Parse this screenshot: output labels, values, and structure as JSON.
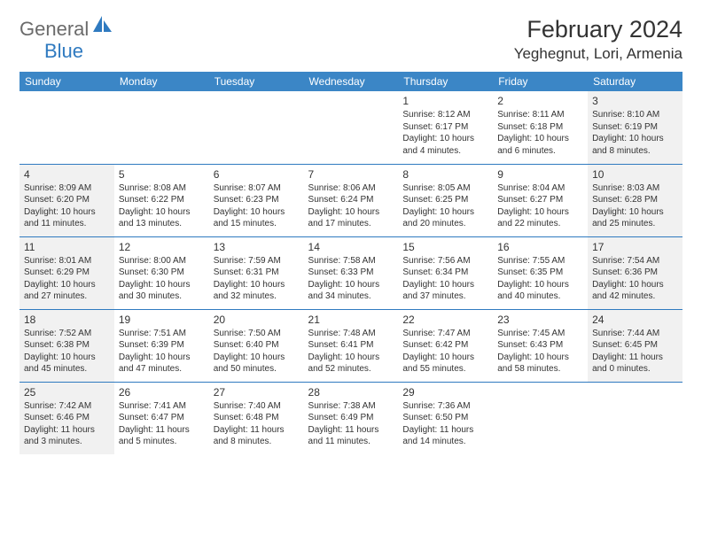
{
  "logo": {
    "text_general": "General",
    "text_blue": "Blue"
  },
  "title": "February 2024",
  "location": "Yeghegnut, Lori, Armenia",
  "colors": {
    "header_bg": "#3b86c6",
    "border": "#2f7ac0",
    "shaded": "#f1f1f1",
    "text": "#333333",
    "logo_gray": "#6b6b6b"
  },
  "weekdays": [
    "Sunday",
    "Monday",
    "Tuesday",
    "Wednesday",
    "Thursday",
    "Friday",
    "Saturday"
  ],
  "weeks": [
    [
      {
        "empty": true
      },
      {
        "empty": true
      },
      {
        "empty": true
      },
      {
        "empty": true
      },
      {
        "day": "1",
        "sunrise": "Sunrise: 8:12 AM",
        "sunset": "Sunset: 6:17 PM",
        "daylight": "Daylight: 10 hours and 4 minutes."
      },
      {
        "day": "2",
        "sunrise": "Sunrise: 8:11 AM",
        "sunset": "Sunset: 6:18 PM",
        "daylight": "Daylight: 10 hours and 6 minutes."
      },
      {
        "day": "3",
        "shaded": true,
        "sunrise": "Sunrise: 8:10 AM",
        "sunset": "Sunset: 6:19 PM",
        "daylight": "Daylight: 10 hours and 8 minutes."
      }
    ],
    [
      {
        "day": "4",
        "shaded": true,
        "sunrise": "Sunrise: 8:09 AM",
        "sunset": "Sunset: 6:20 PM",
        "daylight": "Daylight: 10 hours and 11 minutes."
      },
      {
        "day": "5",
        "sunrise": "Sunrise: 8:08 AM",
        "sunset": "Sunset: 6:22 PM",
        "daylight": "Daylight: 10 hours and 13 minutes."
      },
      {
        "day": "6",
        "sunrise": "Sunrise: 8:07 AM",
        "sunset": "Sunset: 6:23 PM",
        "daylight": "Daylight: 10 hours and 15 minutes."
      },
      {
        "day": "7",
        "sunrise": "Sunrise: 8:06 AM",
        "sunset": "Sunset: 6:24 PM",
        "daylight": "Daylight: 10 hours and 17 minutes."
      },
      {
        "day": "8",
        "sunrise": "Sunrise: 8:05 AM",
        "sunset": "Sunset: 6:25 PM",
        "daylight": "Daylight: 10 hours and 20 minutes."
      },
      {
        "day": "9",
        "sunrise": "Sunrise: 8:04 AM",
        "sunset": "Sunset: 6:27 PM",
        "daylight": "Daylight: 10 hours and 22 minutes."
      },
      {
        "day": "10",
        "shaded": true,
        "sunrise": "Sunrise: 8:03 AM",
        "sunset": "Sunset: 6:28 PM",
        "daylight": "Daylight: 10 hours and 25 minutes."
      }
    ],
    [
      {
        "day": "11",
        "shaded": true,
        "sunrise": "Sunrise: 8:01 AM",
        "sunset": "Sunset: 6:29 PM",
        "daylight": "Daylight: 10 hours and 27 minutes."
      },
      {
        "day": "12",
        "sunrise": "Sunrise: 8:00 AM",
        "sunset": "Sunset: 6:30 PM",
        "daylight": "Daylight: 10 hours and 30 minutes."
      },
      {
        "day": "13",
        "sunrise": "Sunrise: 7:59 AM",
        "sunset": "Sunset: 6:31 PM",
        "daylight": "Daylight: 10 hours and 32 minutes."
      },
      {
        "day": "14",
        "sunrise": "Sunrise: 7:58 AM",
        "sunset": "Sunset: 6:33 PM",
        "daylight": "Daylight: 10 hours and 34 minutes."
      },
      {
        "day": "15",
        "sunrise": "Sunrise: 7:56 AM",
        "sunset": "Sunset: 6:34 PM",
        "daylight": "Daylight: 10 hours and 37 minutes."
      },
      {
        "day": "16",
        "sunrise": "Sunrise: 7:55 AM",
        "sunset": "Sunset: 6:35 PM",
        "daylight": "Daylight: 10 hours and 40 minutes."
      },
      {
        "day": "17",
        "shaded": true,
        "sunrise": "Sunrise: 7:54 AM",
        "sunset": "Sunset: 6:36 PM",
        "daylight": "Daylight: 10 hours and 42 minutes."
      }
    ],
    [
      {
        "day": "18",
        "shaded": true,
        "sunrise": "Sunrise: 7:52 AM",
        "sunset": "Sunset: 6:38 PM",
        "daylight": "Daylight: 10 hours and 45 minutes."
      },
      {
        "day": "19",
        "sunrise": "Sunrise: 7:51 AM",
        "sunset": "Sunset: 6:39 PM",
        "daylight": "Daylight: 10 hours and 47 minutes."
      },
      {
        "day": "20",
        "sunrise": "Sunrise: 7:50 AM",
        "sunset": "Sunset: 6:40 PM",
        "daylight": "Daylight: 10 hours and 50 minutes."
      },
      {
        "day": "21",
        "sunrise": "Sunrise: 7:48 AM",
        "sunset": "Sunset: 6:41 PM",
        "daylight": "Daylight: 10 hours and 52 minutes."
      },
      {
        "day": "22",
        "sunrise": "Sunrise: 7:47 AM",
        "sunset": "Sunset: 6:42 PM",
        "daylight": "Daylight: 10 hours and 55 minutes."
      },
      {
        "day": "23",
        "sunrise": "Sunrise: 7:45 AM",
        "sunset": "Sunset: 6:43 PM",
        "daylight": "Daylight: 10 hours and 58 minutes."
      },
      {
        "day": "24",
        "shaded": true,
        "sunrise": "Sunrise: 7:44 AM",
        "sunset": "Sunset: 6:45 PM",
        "daylight": "Daylight: 11 hours and 0 minutes."
      }
    ],
    [
      {
        "day": "25",
        "shaded": true,
        "sunrise": "Sunrise: 7:42 AM",
        "sunset": "Sunset: 6:46 PM",
        "daylight": "Daylight: 11 hours and 3 minutes."
      },
      {
        "day": "26",
        "sunrise": "Sunrise: 7:41 AM",
        "sunset": "Sunset: 6:47 PM",
        "daylight": "Daylight: 11 hours and 5 minutes."
      },
      {
        "day": "27",
        "sunrise": "Sunrise: 7:40 AM",
        "sunset": "Sunset: 6:48 PM",
        "daylight": "Daylight: 11 hours and 8 minutes."
      },
      {
        "day": "28",
        "sunrise": "Sunrise: 7:38 AM",
        "sunset": "Sunset: 6:49 PM",
        "daylight": "Daylight: 11 hours and 11 minutes."
      },
      {
        "day": "29",
        "sunrise": "Sunrise: 7:36 AM",
        "sunset": "Sunset: 6:50 PM",
        "daylight": "Daylight: 11 hours and 14 minutes."
      },
      {
        "empty": true
      },
      {
        "empty": true
      }
    ]
  ]
}
